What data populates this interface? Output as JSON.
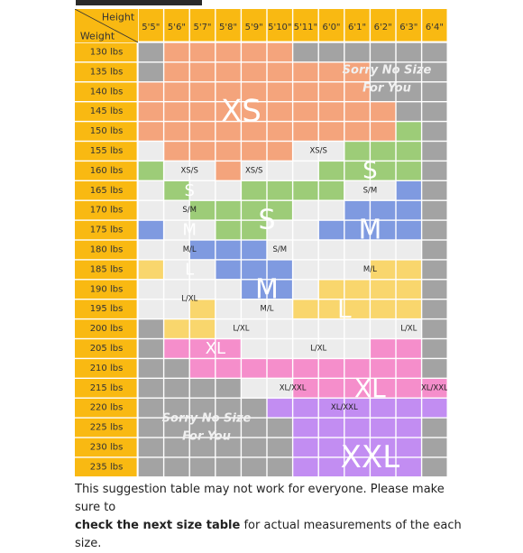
{
  "table": {
    "header_height": "Height",
    "header_weight": "Weight",
    "heights": [
      "5'5\"",
      "5'6\"",
      "5'7\"",
      "5'8\"",
      "5'9\"",
      "5'10\"",
      "5'11\"",
      "6'0\"",
      "6'1\"",
      "6'2\"",
      "6'3\"",
      "6'4\""
    ],
    "weights": [
      "130 lbs",
      "135 lbs",
      "140 lbs",
      "145 lbs",
      "150 lbs",
      "155 lbs",
      "160 lbs",
      "165 lbs",
      "170 lbs",
      "175 lbs",
      "180 lbs",
      "185 lbs",
      "190 lbs",
      "195 lbs",
      "200 lbs",
      "205 lbs",
      "210 lbs",
      "215 lbs",
      "220 lbs",
      "225 lbs",
      "230 lbs",
      "235 lbs"
    ],
    "size_colors": {
      "N": "#a3a3a3",
      "XS": "#f4a47c",
      "S": "#9dcc78",
      "M": "#7f9ae0",
      "L": "#f9d66d",
      "XL": "#f58ecb",
      "XXL": "#c28df2",
      "E": "#ececec",
      "header": "#f9b912"
    },
    "grid": [
      "NXXXXXNNNNNN",
      "NXXXXXXXXNNN",
      "XXXXXXXXXNNN",
      "XXXXXXXXXXNN",
      "XXXXXXXXXXSN",
      "EXXXXXEESSSN",
      "SEEXEEESSSSN",
      "ESEESSSSEEMN",
      "EESSSSEEMMMN",
      "MEESSEEMMMMN",
      "EEMMMEEEEEEN",
      "LEEMMMEEELLN",
      "EEEEMMELLLLN",
      "EELEEELLLLLN",
      "NLLEEEEEEEEN",
      "NXXXEEEEEXXN",
      "NNXXXXXXXXXN",
      "NNNNEEXXXXXX",
      "NNNNNUUUUUUU",
      "NNNNNNUUUUUN",
      "NNNNNNUUUUUN",
      "NNNNNNUUUUUN"
    ],
    "big_labels": [
      {
        "text": "XS",
        "col": 3.5,
        "row": 3
      },
      {
        "text": "S",
        "col": 8.5,
        "row": 6
      },
      {
        "text": "S",
        "col": 1.5,
        "row": 7
      },
      {
        "text": "S",
        "col": 4.5,
        "row": 8.5
      },
      {
        "text": "M",
        "col": 1.5,
        "row": 9
      },
      {
        "text": "M",
        "col": 8.5,
        "row": 9
      },
      {
        "text": "M",
        "col": 4.5,
        "row": 12
      },
      {
        "text": "L",
        "col": 1.5,
        "row": 11
      },
      {
        "text": "L",
        "col": 7.5,
        "row": 13
      },
      {
        "text": "XL",
        "col": 2.5,
        "row": 15
      },
      {
        "text": "XL",
        "col": 8.5,
        "row": 17
      },
      {
        "text": "XXL",
        "col": 8.5,
        "row": 20.5
      }
    ],
    "small_labels": [
      {
        "text": "XS/S",
        "col": 1.5,
        "row": 6
      },
      {
        "text": "XS/S",
        "col": 4,
        "row": 6
      },
      {
        "text": "XS/S",
        "col": 6.5,
        "row": 5
      },
      {
        "text": "S/M",
        "col": 1.5,
        "row": 8
      },
      {
        "text": "S/M",
        "col": 8.5,
        "row": 7
      },
      {
        "text": "S/M",
        "col": 5,
        "row": 10
      },
      {
        "text": "M/L",
        "col": 1.5,
        "row": 10
      },
      {
        "text": "M/L",
        "col": 8.5,
        "row": 11
      },
      {
        "text": "M/L",
        "col": 4.5,
        "row": 13
      },
      {
        "text": "L/XL",
        "col": 1.5,
        "row": 12.5
      },
      {
        "text": "L/XL",
        "col": 3.5,
        "row": 14
      },
      {
        "text": "L/XL",
        "col": 6.5,
        "row": 15
      },
      {
        "text": "L/XL",
        "col": 10,
        "row": 14
      },
      {
        "text": "XL/XXL",
        "col": 5.5,
        "row": 17
      },
      {
        "text": "XL/XXL",
        "col": 7.5,
        "row": 18
      },
      {
        "text": "XL/XXL",
        "col": 11,
        "row": 17
      }
    ],
    "sorry_top": [
      "Sorry No Size",
      "For You"
    ],
    "sorry_bottom": [
      "Sorry No Size",
      "For You"
    ]
  },
  "footnote": {
    "line1": "This suggestion table may not work for everyone. Please make sure to",
    "bold": "check the next size table",
    "rest": " for actual measurements of the each size."
  }
}
